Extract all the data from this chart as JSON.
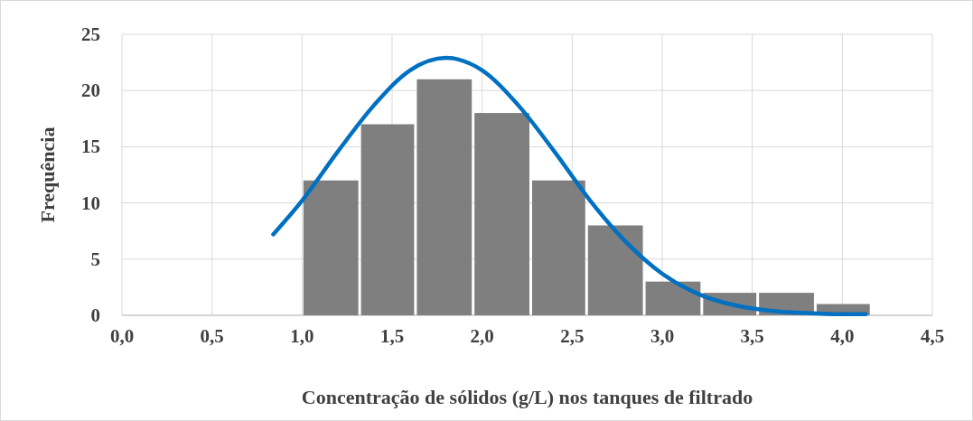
{
  "chart_data": {
    "type": "histogram",
    "xlabel": "Concentração de sólidos (g/L) nos tanques de filtrado",
    "ylabel": "Frequência",
    "bins": [
      1.0,
      1.32,
      1.63,
      1.95,
      2.27,
      2.58,
      2.9,
      3.22,
      3.53,
      3.85,
      4.16
    ],
    "values": [
      12,
      17,
      21,
      18,
      12,
      8,
      3,
      2,
      2,
      1
    ],
    "color": "#7f7f7f",
    "series": [
      {
        "type": "line",
        "color": "#0070c0",
        "x": [
          0.84,
          1.0,
          1.2,
          1.4,
          1.6,
          1.8,
          2.0,
          2.2,
          2.4,
          2.6,
          2.8,
          3.0,
          3.2,
          3.4,
          3.6,
          3.8,
          4.0,
          4.13
        ],
        "values": [
          7.2,
          10.2,
          14.6,
          18.7,
          21.8,
          22.9,
          21.8,
          18.7,
          14.6,
          10.2,
          6.5,
          3.7,
          1.9,
          0.9,
          0.4,
          0.2,
          0.1,
          0.1
        ]
      }
    ],
    "xlim": [
      0,
      4.5
    ],
    "xticks": [
      {
        "value": 0,
        "label": "0,0"
      },
      {
        "value": 0.5,
        "label": "0,5"
      },
      {
        "value": 1,
        "label": "1,0"
      },
      {
        "value": 1.5,
        "label": "1,5"
      },
      {
        "value": 2,
        "label": "2,0"
      },
      {
        "value": 2.5,
        "label": "2,5"
      },
      {
        "value": 3,
        "label": "3,0"
      },
      {
        "value": 3.5,
        "label": "3,5"
      },
      {
        "value": 4,
        "label": "4,0"
      },
      {
        "value": 4.5,
        "label": "4,5"
      }
    ],
    "ylim": [
      0,
      25
    ],
    "yticks": [
      0,
      5,
      10,
      15,
      20,
      25
    ],
    "grid": true
  }
}
